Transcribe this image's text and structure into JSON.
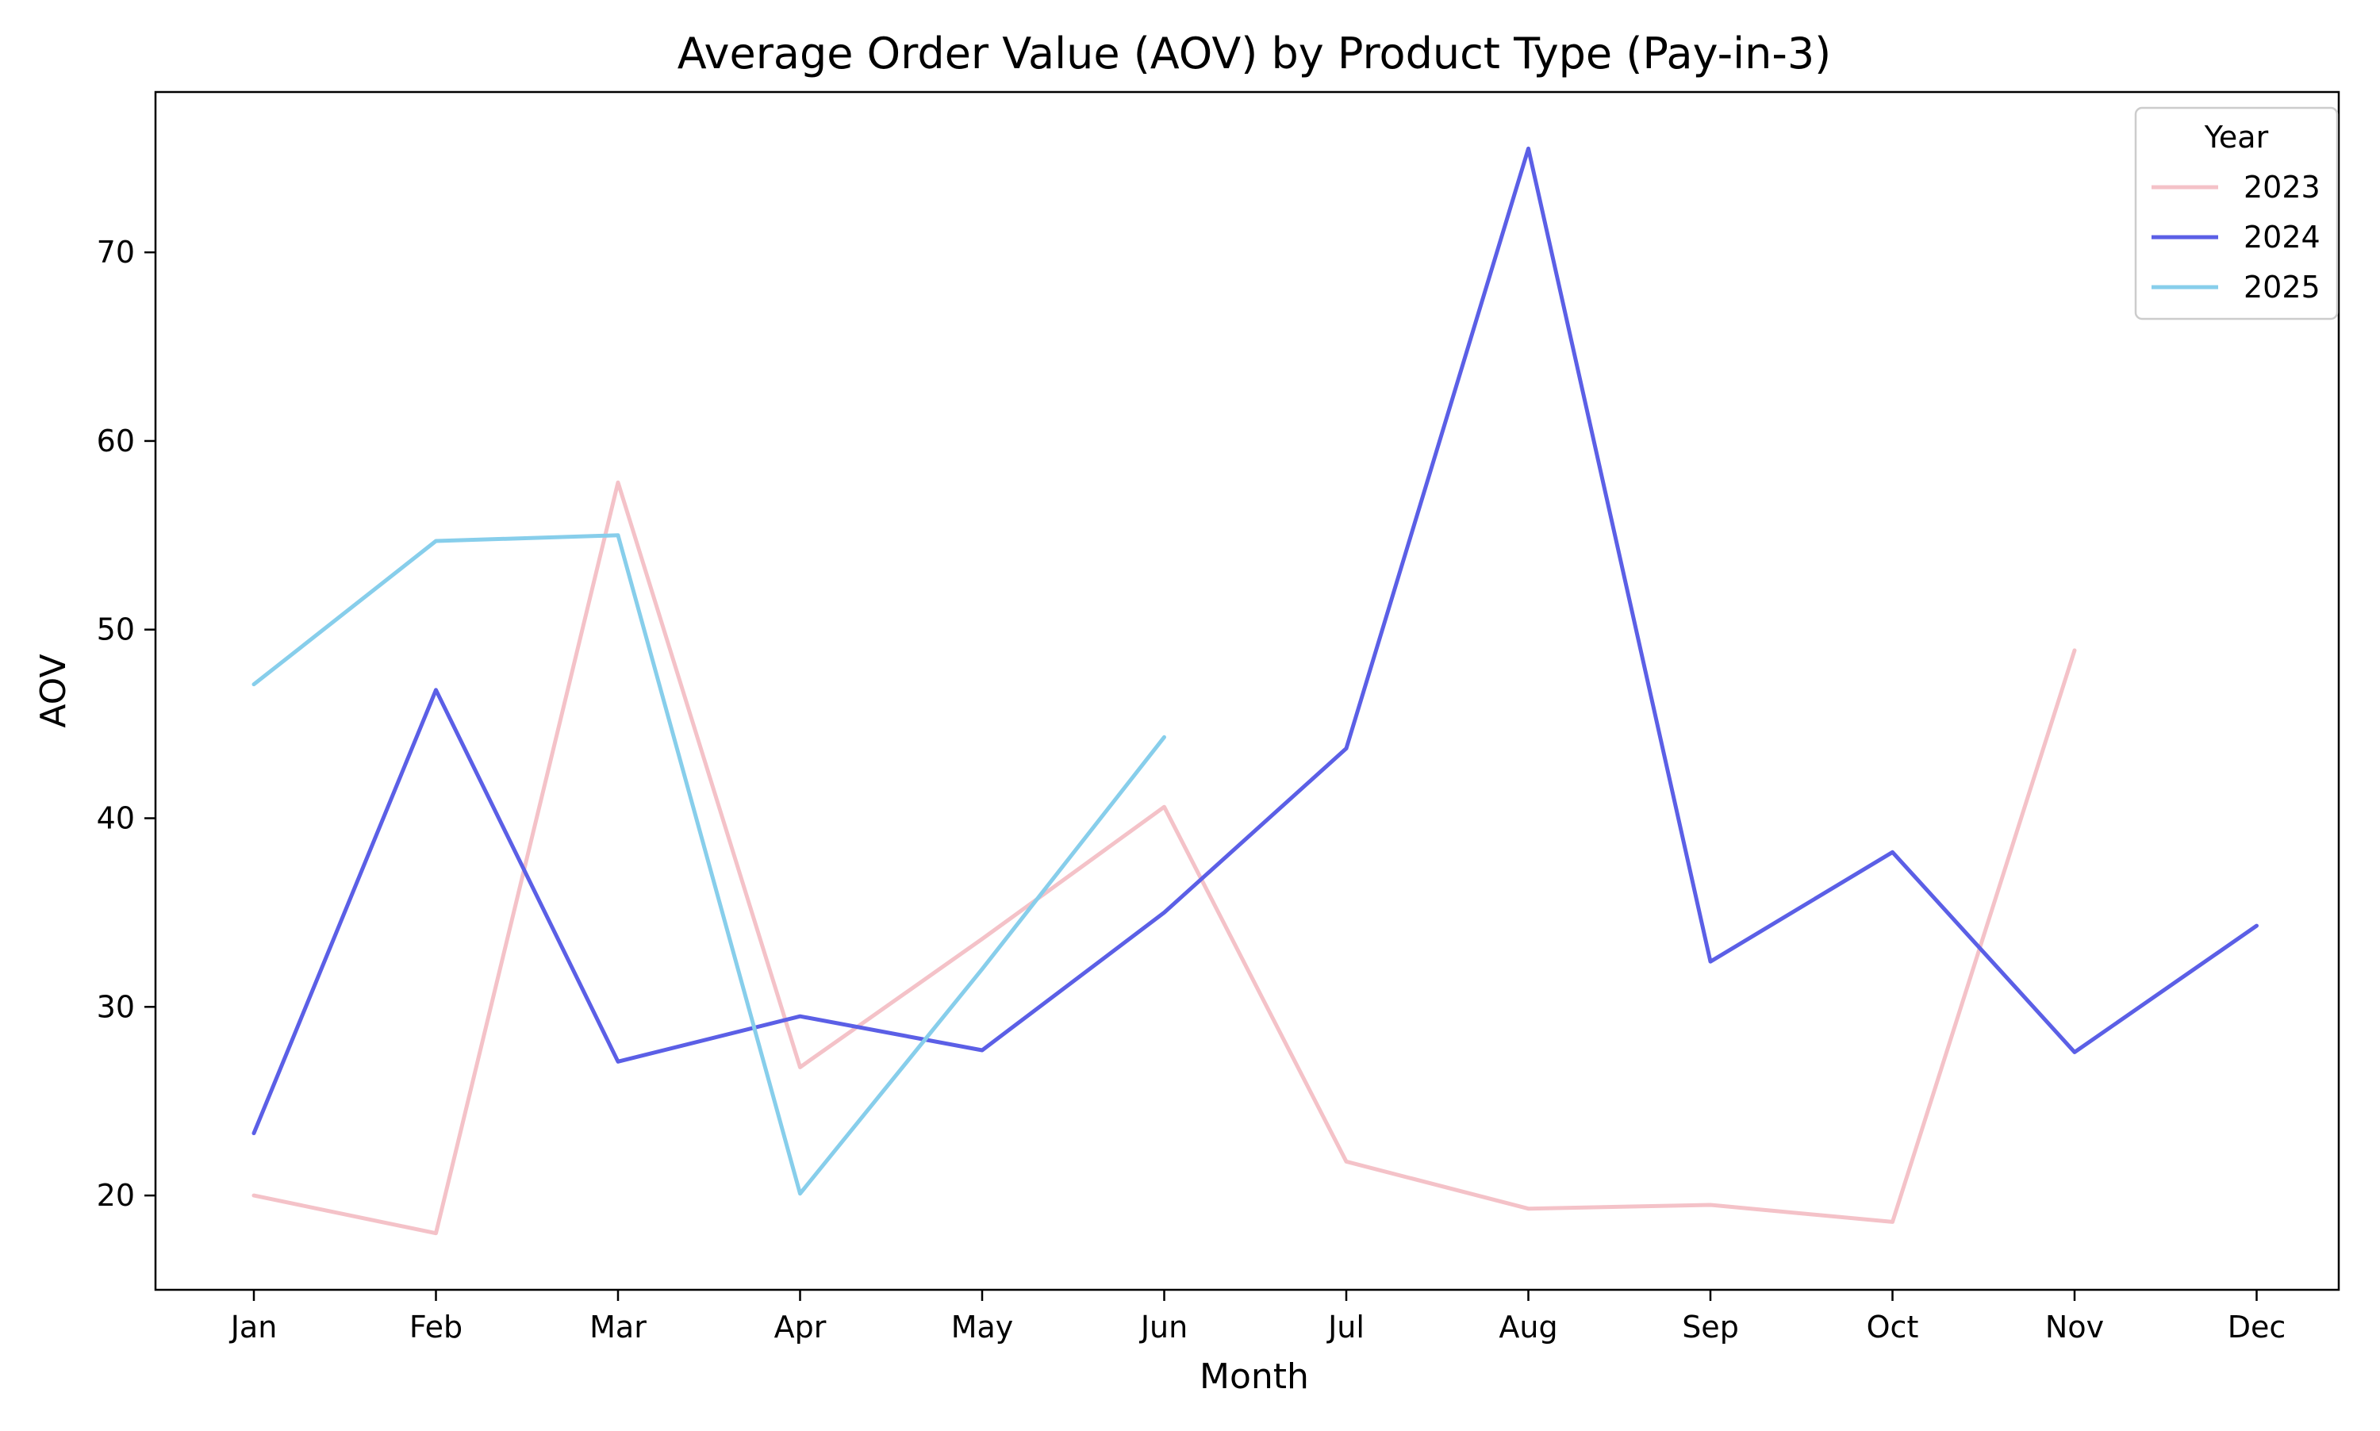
{
  "chart_data": {
    "type": "line",
    "title": "Average Order Value (AOV) by Product Type (Pay-in-3)",
    "xlabel": "Month",
    "ylabel": "AOV",
    "categories": [
      "Jan",
      "Feb",
      "Mar",
      "Apr",
      "May",
      "Jun",
      "Jul",
      "Aug",
      "Sep",
      "Oct",
      "Nov",
      "Dec"
    ],
    "ylim": [
      15,
      78.5
    ],
    "yticks": [
      20,
      30,
      40,
      50,
      60,
      70
    ],
    "grid": false,
    "legend": {
      "title": "Year",
      "placement": "top-right"
    },
    "series": [
      {
        "name": "2023",
        "color": "#f4c2c8",
        "values": [
          20.0,
          18.0,
          57.8,
          26.8,
          33.6,
          40.6,
          21.8,
          19.3,
          19.5,
          18.6,
          48.9,
          null
        ]
      },
      {
        "name": "2024",
        "color": "#5b5fe6",
        "values": [
          23.3,
          46.8,
          27.1,
          29.5,
          27.7,
          35.0,
          43.7,
          75.5,
          32.4,
          38.2,
          27.6,
          34.3
        ]
      },
      {
        "name": "2025",
        "color": "#87ceeb",
        "values": [
          47.1,
          54.7,
          55.0,
          20.1,
          32.0,
          44.3,
          null,
          null,
          null,
          null,
          null,
          null
        ]
      }
    ]
  }
}
